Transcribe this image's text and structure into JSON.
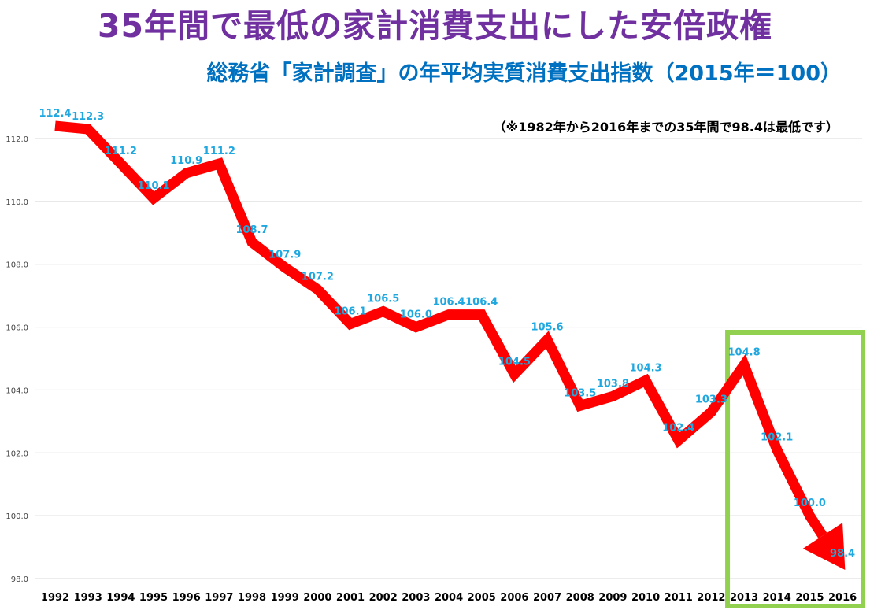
{
  "title": "35年間で最低の家計消費支出にした安倍政権",
  "subtitle": "総務省「家計調査」の年平均実質消費支出指数（2015年＝100）",
  "note": "（※1982年から2016年までの35年間で98.4は最低です）",
  "colors": {
    "title": "#7030a0",
    "subtitle": "#0070c0",
    "line": "#ff0000",
    "data_label": "#1fa8e0",
    "highlight_box": "#92d050",
    "gridline": "#d9d9d9"
  },
  "chart_data": {
    "type": "line",
    "title": "35年間で最低の家計消費支出にした安倍政権",
    "subtitle": "総務省「家計調査」の年平均実質消費支出指数（2015年＝100）",
    "categories": [
      "1992",
      "1993",
      "1994",
      "1995",
      "1996",
      "1997",
      "1998",
      "1999",
      "2000",
      "2001",
      "2002",
      "2003",
      "2004",
      "2005",
      "2006",
      "2007",
      "2008",
      "2009",
      "2010",
      "2011",
      "2012",
      "2013",
      "2014",
      "2015",
      "2016"
    ],
    "values": [
      112.4,
      112.3,
      111.2,
      110.1,
      110.9,
      111.2,
      108.7,
      107.9,
      107.2,
      106.1,
      106.5,
      106.0,
      106.4,
      106.4,
      104.5,
      105.6,
      103.5,
      103.8,
      104.3,
      102.4,
      103.3,
      104.8,
      102.1,
      100.0,
      98.4
    ],
    "value_labels": [
      "112.4",
      "112.3",
      "111.2",
      "110.1",
      "110.9",
      "111.2",
      "108.7",
      "107.9",
      "107.2",
      "106.1",
      "106.5",
      "106.0",
      "106.4",
      "106.4",
      "104.5",
      "105.6",
      "103.5",
      "103.8",
      "104.3",
      "102.4",
      "103.3",
      "104.8",
      "102.1",
      "100.0",
      "98.4"
    ],
    "yticks": [
      "98.0",
      "100.0",
      "102.0",
      "104.0",
      "106.0",
      "108.0",
      "110.0",
      "112.0"
    ],
    "ylim": [
      98,
      112
    ],
    "grid": true,
    "legend": false,
    "line_style": "thick red line ending in arrowhead",
    "highlight_range": [
      "2013",
      "2016"
    ],
    "annotation": "（※1982年から2016年までの35年間で98.4は最低です）"
  }
}
